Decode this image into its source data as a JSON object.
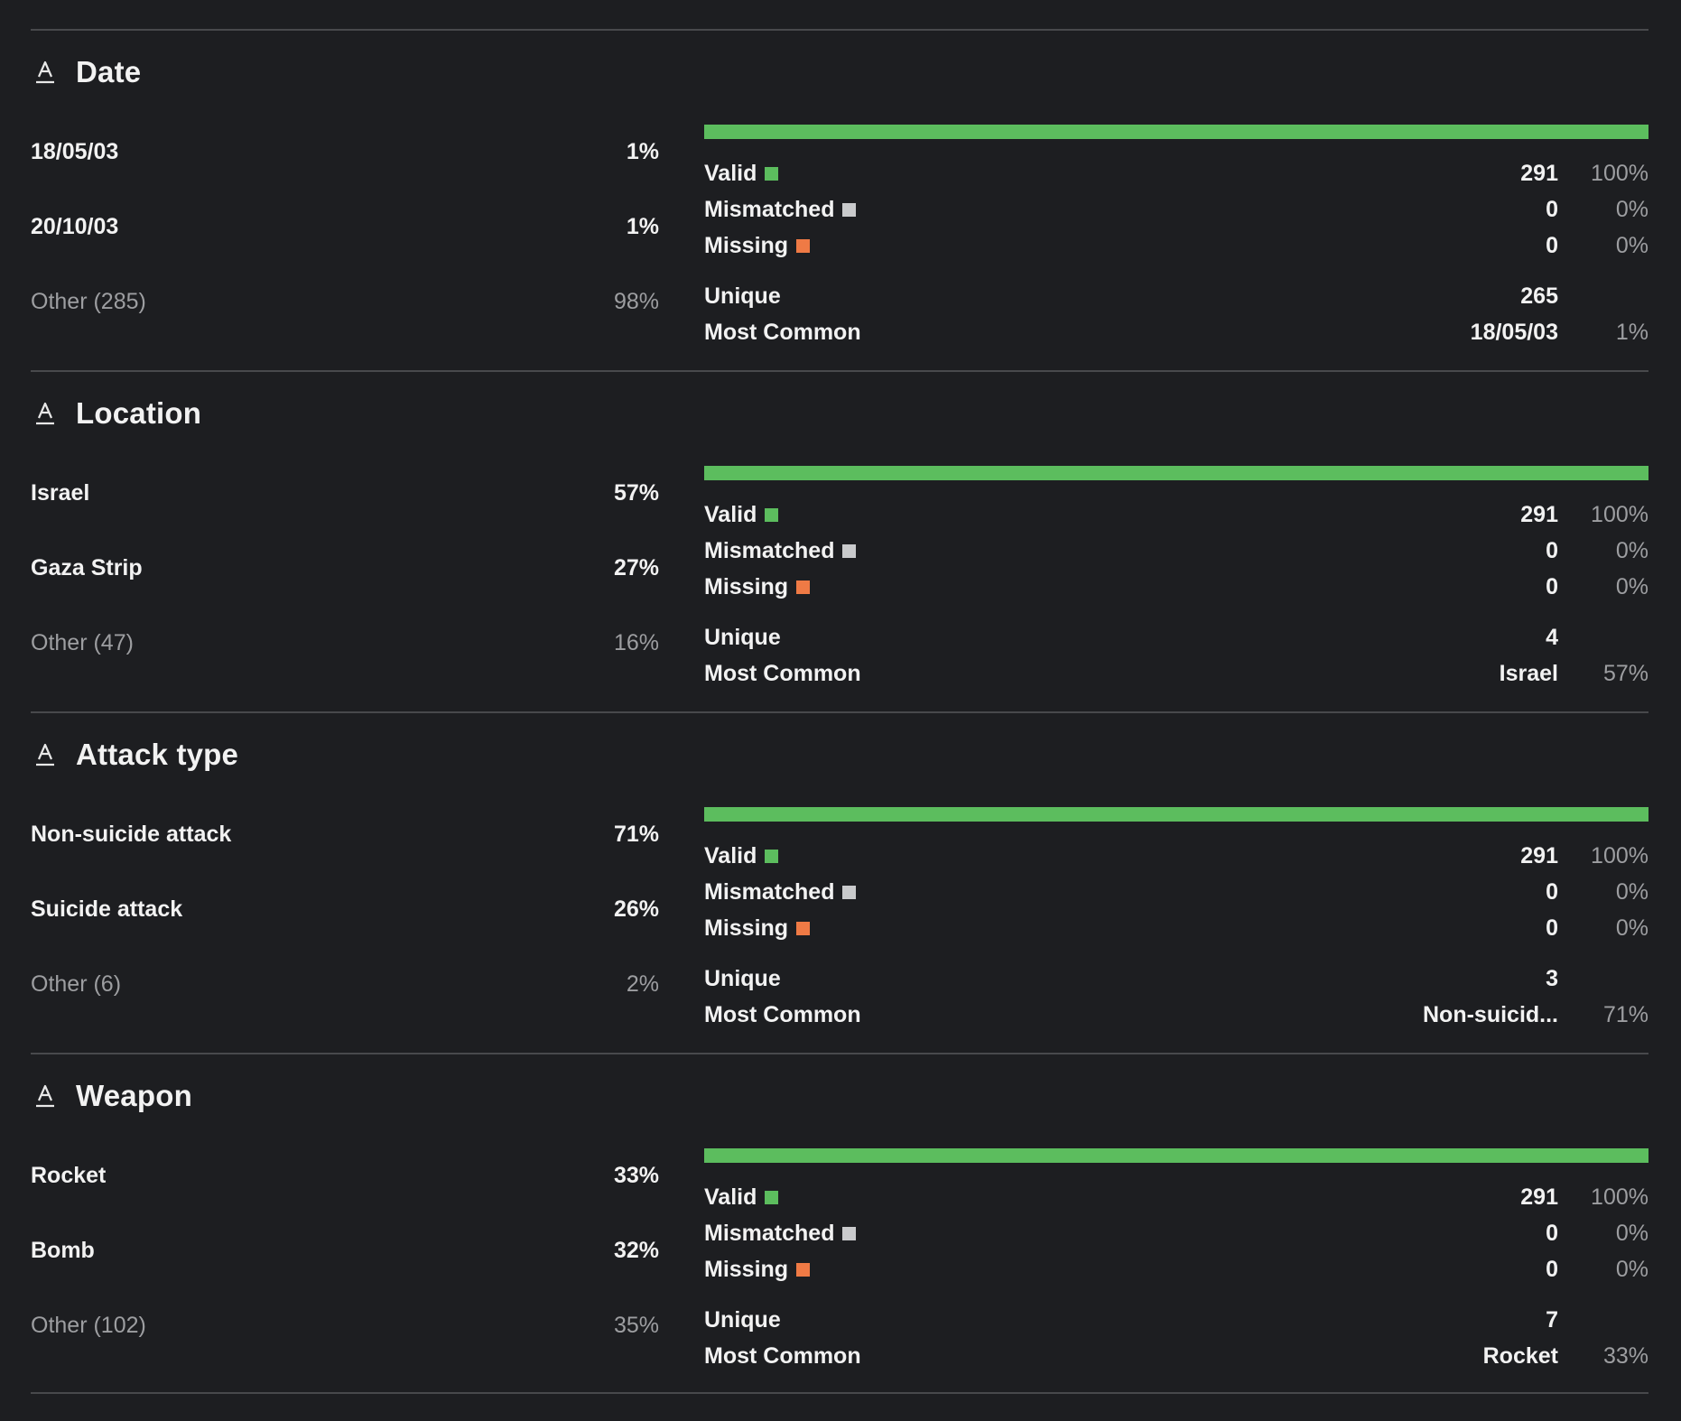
{
  "colors": {
    "valid": "#5cbd5e",
    "mismatched": "#c9cacc",
    "missing": "#ef7a45",
    "bar_track": "#4c4d50",
    "background": "#1d1e21"
  },
  "column_type_icon": "text-type-icon",
  "labels": {
    "valid": "Valid",
    "mismatched": "Mismatched",
    "missing": "Missing",
    "unique": "Unique",
    "most_common": "Most Common"
  },
  "columns": [
    {
      "name": "Date",
      "top_values": [
        {
          "label": "18/05/03",
          "pct": "1%"
        },
        {
          "label": "20/10/03",
          "pct": "1%"
        }
      ],
      "other": {
        "label": "Other (285)",
        "pct": "98%"
      },
      "valid_fraction": 1.0,
      "valid": {
        "count": "291",
        "pct": "100%"
      },
      "mismatched": {
        "count": "0",
        "pct": "0%"
      },
      "missing": {
        "count": "0",
        "pct": "0%"
      },
      "unique": "265",
      "most_common": {
        "value": "18/05/03",
        "pct": "1%"
      }
    },
    {
      "name": "Location",
      "top_values": [
        {
          "label": "Israel",
          "pct": "57%"
        },
        {
          "label": "Gaza Strip",
          "pct": "27%"
        }
      ],
      "other": {
        "label": "Other (47)",
        "pct": "16%"
      },
      "valid_fraction": 1.0,
      "valid": {
        "count": "291",
        "pct": "100%"
      },
      "mismatched": {
        "count": "0",
        "pct": "0%"
      },
      "missing": {
        "count": "0",
        "pct": "0%"
      },
      "unique": "4",
      "most_common": {
        "value": "Israel",
        "pct": "57%"
      }
    },
    {
      "name": "Attack type",
      "top_values": [
        {
          "label": "Non-suicide attack",
          "pct": "71%"
        },
        {
          "label": "Suicide attack",
          "pct": "26%"
        }
      ],
      "other": {
        "label": "Other (6)",
        "pct": "2%"
      },
      "valid_fraction": 1.0,
      "valid": {
        "count": "291",
        "pct": "100%"
      },
      "mismatched": {
        "count": "0",
        "pct": "0%"
      },
      "missing": {
        "count": "0",
        "pct": "0%"
      },
      "unique": "3",
      "most_common": {
        "value": "Non-suicid...",
        "pct": "71%"
      }
    },
    {
      "name": "Weapon",
      "top_values": [
        {
          "label": "Rocket",
          "pct": "33%"
        },
        {
          "label": "Bomb",
          "pct": "32%"
        }
      ],
      "other": {
        "label": "Other (102)",
        "pct": "35%"
      },
      "valid_fraction": 1.0,
      "valid": {
        "count": "291",
        "pct": "100%"
      },
      "mismatched": {
        "count": "0",
        "pct": "0%"
      },
      "missing": {
        "count": "0",
        "pct": "0%"
      },
      "unique": "7",
      "most_common": {
        "value": "Rocket",
        "pct": "33%"
      }
    }
  ]
}
